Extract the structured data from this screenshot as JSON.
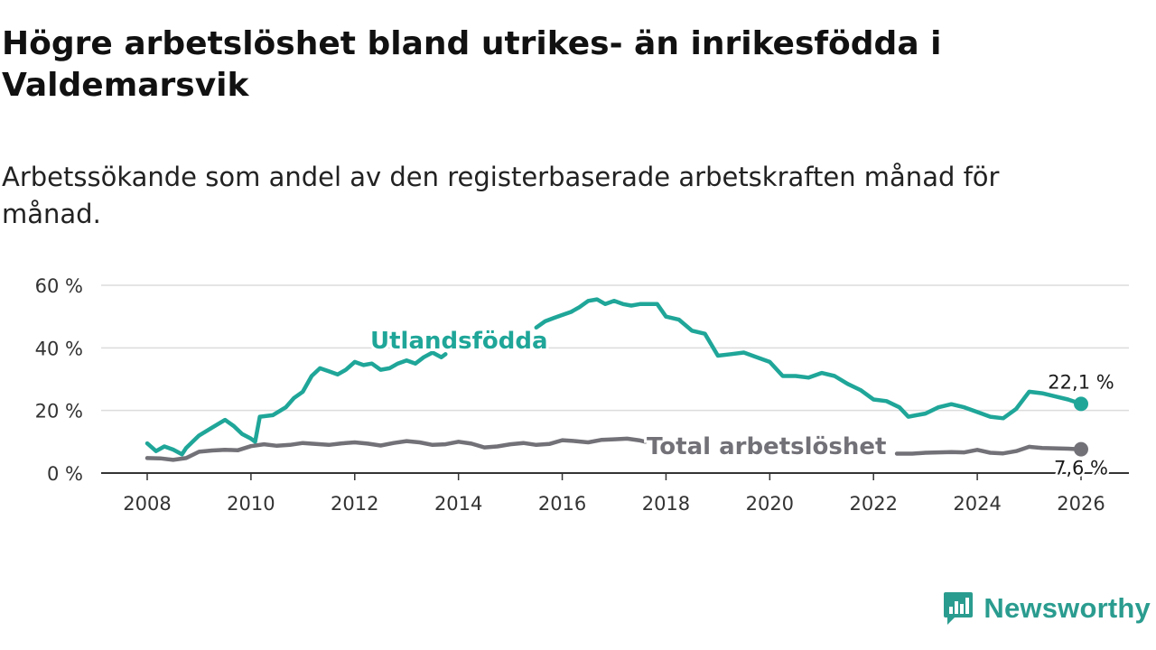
{
  "header": {
    "title": "Högre arbetslöshet bland utrikes- än inrikesfödda i Valdemarsvik",
    "subtitle": "Arbetssökande som andel av den registerbaserade arbetskraften månad för månad."
  },
  "brand": {
    "name": "Newsworthy",
    "icon": "newsworthy-logo-icon",
    "color": "#2a9c8f"
  },
  "chart_data": {
    "type": "line",
    "title": "Högre arbetslöshet bland utrikes- än inrikesfödda i Valdemarsvik",
    "subtitle": "Arbetssökande som andel av den registerbaserade arbetskraften månad för månad.",
    "xlabel": "",
    "ylabel": "",
    "xlim": [
      2007.7,
      2026.5
    ],
    "ylim": [
      0,
      60
    ],
    "y_ticks": [
      0,
      20,
      40,
      60
    ],
    "y_tick_labels": [
      "0 %",
      "20 %",
      "40 %",
      "60 %"
    ],
    "x_ticks": [
      2008,
      2010,
      2012,
      2014,
      2016,
      2018,
      2020,
      2022,
      2024,
      2026
    ],
    "x_tick_labels": [
      "2008",
      "2010",
      "2012",
      "2014",
      "2016",
      "2018",
      "2020",
      "2022",
      "2024",
      "2026"
    ],
    "grid": true,
    "series": [
      {
        "name": "Utlandsfödda",
        "color": "#1fa699",
        "end_label": "22,1 %",
        "end_value": 22.1,
        "hidden_ranges": [
          [
            2013.75,
            2015.5
          ]
        ],
        "x": [
          2008.0,
          2008.17,
          2008.33,
          2008.5,
          2008.67,
          2008.75,
          2009.0,
          2009.25,
          2009.5,
          2009.67,
          2009.83,
          2010.0,
          2010.08,
          2010.17,
          2010.42,
          2010.67,
          2010.83,
          2011.0,
          2011.17,
          2011.33,
          2011.5,
          2011.67,
          2011.83,
          2012.0,
          2012.17,
          2012.33,
          2012.5,
          2012.67,
          2012.83,
          2013.0,
          2013.17,
          2013.33,
          2013.5,
          2013.67,
          2013.75,
          2015.5,
          2015.67,
          2015.83,
          2016.0,
          2016.17,
          2016.33,
          2016.5,
          2016.67,
          2016.83,
          2017.0,
          2017.17,
          2017.33,
          2017.5,
          2017.67,
          2017.83,
          2018.0,
          2018.25,
          2018.5,
          2018.75,
          2019.0,
          2019.25,
          2019.5,
          2019.75,
          2020.0,
          2020.25,
          2020.5,
          2020.75,
          2021.0,
          2021.25,
          2021.5,
          2021.75,
          2022.0,
          2022.25,
          2022.5,
          2022.67,
          2022.83,
          2023.0,
          2023.25,
          2023.5,
          2023.75,
          2024.0,
          2024.25,
          2024.5,
          2024.75,
          2025.0,
          2025.25,
          2025.5,
          2025.75,
          2026.0
        ],
        "values": [
          9.5,
          7.0,
          8.5,
          7.5,
          6.0,
          8.0,
          12.0,
          14.5,
          17.0,
          15.0,
          12.5,
          11.0,
          10.0,
          18.0,
          18.5,
          21.0,
          24.0,
          26.0,
          31.0,
          33.5,
          32.5,
          31.5,
          33.0,
          35.5,
          34.5,
          35.0,
          33.0,
          33.5,
          35.0,
          36.0,
          35.0,
          37.0,
          38.5,
          37.0,
          38.0,
          46.5,
          48.5,
          49.5,
          50.5,
          51.5,
          53.0,
          55.0,
          55.5,
          54.0,
          55.0,
          54.0,
          53.5,
          54.0,
          54.0,
          54.0,
          50.0,
          49.0,
          45.5,
          44.5,
          37.5,
          38.0,
          38.5,
          37.0,
          35.5,
          31.0,
          31.0,
          30.5,
          32.0,
          31.0,
          28.5,
          26.5,
          23.5,
          23.0,
          21.0,
          18.0,
          18.5,
          19.0,
          21.0,
          22.0,
          21.0,
          19.5,
          18.0,
          17.5,
          20.5,
          26.0,
          25.5,
          24.5,
          23.5,
          22.1
        ]
      },
      {
        "name": "Total arbetslöshet",
        "color": "#737178",
        "end_label": "7,6 %",
        "end_value": 7.6,
        "hidden_ranges": [
          [
            2017.6,
            2022.45
          ]
        ],
        "x": [
          2008.0,
          2008.25,
          2008.5,
          2008.75,
          2009.0,
          2009.25,
          2009.5,
          2009.75,
          2010.0,
          2010.25,
          2010.5,
          2010.75,
          2011.0,
          2011.25,
          2011.5,
          2011.75,
          2012.0,
          2012.25,
          2012.5,
          2012.75,
          2013.0,
          2013.25,
          2013.5,
          2013.75,
          2014.0,
          2014.25,
          2014.5,
          2014.75,
          2015.0,
          2015.25,
          2015.5,
          2015.75,
          2016.0,
          2016.25,
          2016.5,
          2016.75,
          2017.0,
          2017.25,
          2017.5,
          2017.6,
          2022.45,
          2022.75,
          2023.0,
          2023.25,
          2023.5,
          2023.75,
          2024.0,
          2024.25,
          2024.5,
          2024.75,
          2025.0,
          2025.25,
          2025.5,
          2025.75,
          2026.0
        ],
        "values": [
          4.8,
          4.7,
          4.2,
          4.8,
          6.8,
          7.2,
          7.4,
          7.3,
          8.6,
          9.2,
          8.7,
          9.0,
          9.6,
          9.3,
          9.0,
          9.5,
          9.8,
          9.4,
          8.8,
          9.6,
          10.2,
          9.8,
          9.0,
          9.2,
          10.0,
          9.4,
          8.2,
          8.5,
          9.2,
          9.6,
          9.0,
          9.3,
          10.5,
          10.2,
          9.8,
          10.6,
          10.8,
          11.0,
          10.4,
          10.0,
          6.2,
          6.2,
          6.5,
          6.6,
          6.7,
          6.6,
          7.4,
          6.5,
          6.3,
          7.0,
          8.4,
          8.0,
          7.9,
          7.8,
          7.6
        ]
      }
    ]
  }
}
